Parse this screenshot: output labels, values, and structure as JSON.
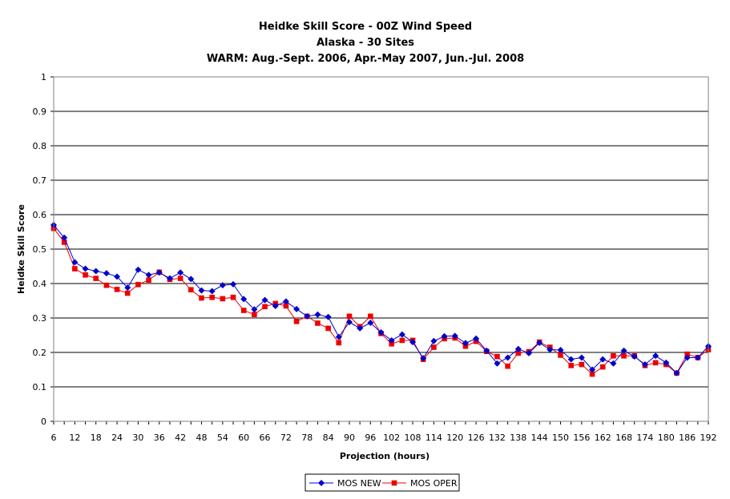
{
  "colors": {
    "mos_new": "#0000cc",
    "mos_oper": "#ee0000",
    "grid": "#000000",
    "background": "#ffffff"
  },
  "chart_data": {
    "type": "line",
    "title": [
      "Heidke Skill Score - 00Z Wind Speed",
      "Alaska - 30 Sites",
      "WARM: Aug.-Sept. 2006, Apr.-May 2007, Jun.-Jul. 2008"
    ],
    "xlabel": "Projection (hours)",
    "ylabel": "Heidke Skill Score",
    "ylim": [
      0,
      1
    ],
    "xlim": [
      6,
      192
    ],
    "yticks": [
      "0",
      "0.1",
      "0.2",
      "0.3",
      "0.4",
      "0.5",
      "0.6",
      "0.7",
      "0.8",
      "0.9",
      "1"
    ],
    "xticks": [
      "6",
      "12",
      "18",
      "24",
      "30",
      "36",
      "42",
      "48",
      "54",
      "60",
      "66",
      "72",
      "78",
      "84",
      "90",
      "96",
      "102",
      "108",
      "114",
      "120",
      "126",
      "132",
      "138",
      "144",
      "150",
      "156",
      "162",
      "168",
      "174",
      "180",
      "186",
      "192"
    ],
    "grid": "horizontal",
    "legend_position": "bottom-center",
    "x": [
      6,
      9,
      12,
      15,
      18,
      21,
      24,
      27,
      30,
      33,
      36,
      39,
      42,
      45,
      48,
      51,
      54,
      57,
      60,
      63,
      66,
      69,
      72,
      75,
      78,
      81,
      84,
      87,
      90,
      93,
      96,
      99,
      102,
      105,
      108,
      111,
      114,
      117,
      120,
      123,
      126,
      129,
      132,
      135,
      138,
      141,
      144,
      147,
      150,
      153,
      156,
      159,
      162,
      165,
      168,
      171,
      174,
      177,
      180,
      183,
      186,
      189,
      192
    ],
    "series": [
      {
        "name": "MOS NEW",
        "color": "#0000cc",
        "marker": "diamond",
        "values": [
          0.57,
          0.533,
          0.462,
          0.443,
          0.436,
          0.43,
          0.42,
          0.388,
          0.44,
          0.425,
          0.432,
          0.415,
          0.432,
          0.413,
          0.38,
          0.378,
          0.395,
          0.398,
          0.355,
          0.325,
          0.352,
          0.335,
          0.348,
          0.326,
          0.305,
          0.31,
          0.303,
          0.245,
          0.288,
          0.27,
          0.286,
          0.258,
          0.235,
          0.252,
          0.23,
          0.183,
          0.233,
          0.247,
          0.248,
          0.227,
          0.24,
          0.205,
          0.168,
          0.185,
          0.21,
          0.198,
          0.228,
          0.208,
          0.207,
          0.18,
          0.185,
          0.15,
          0.18,
          0.168,
          0.205,
          0.188,
          0.165,
          0.19,
          0.17,
          0.14,
          0.185,
          0.185,
          0.218
        ]
      },
      {
        "name": "MOS OPER",
        "color": "#ee0000",
        "marker": "square",
        "values": [
          0.56,
          0.52,
          0.443,
          0.425,
          0.415,
          0.395,
          0.383,
          0.372,
          0.397,
          0.41,
          0.433,
          0.412,
          0.415,
          0.382,
          0.358,
          0.36,
          0.356,
          0.36,
          0.322,
          0.31,
          0.333,
          0.342,
          0.335,
          0.29,
          0.305,
          0.285,
          0.27,
          0.228,
          0.305,
          0.275,
          0.305,
          0.255,
          0.225,
          0.235,
          0.235,
          0.18,
          0.215,
          0.24,
          0.242,
          0.218,
          0.232,
          0.203,
          0.188,
          0.16,
          0.198,
          0.202,
          0.23,
          0.215,
          0.192,
          0.162,
          0.165,
          0.137,
          0.158,
          0.19,
          0.19,
          0.19,
          0.162,
          0.17,
          0.165,
          0.14,
          0.195,
          0.185,
          0.208
        ]
      }
    ]
  }
}
